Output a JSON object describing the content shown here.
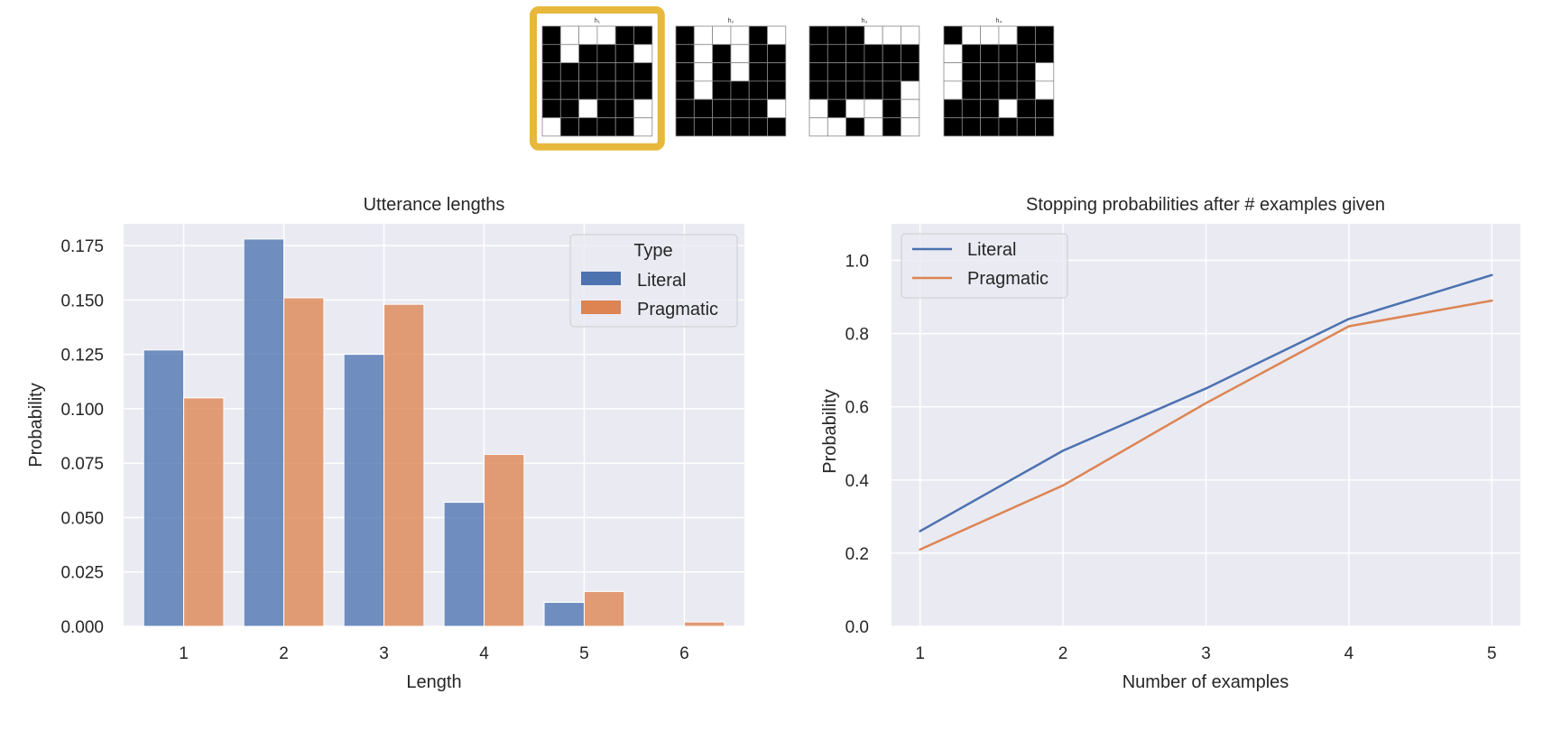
{
  "colors": {
    "literal": "#4C72B0",
    "pragmatic": "#DD8452",
    "plot_bg": "#EAEAF2",
    "grid": "#FFFFFF",
    "highlight": "#E8B83C"
  },
  "hypotheses": {
    "selected_index": 0,
    "items": [
      {
        "label": "h₁",
        "rows": [
          "011100",
          "010001",
          "000000",
          "000000",
          "001001",
          "100001"
        ]
      },
      {
        "label": "h₂",
        "rows": [
          "011101",
          "010100",
          "010100",
          "010000",
          "000001",
          "000000"
        ]
      },
      {
        "label": "h₃",
        "rows": [
          "000111",
          "000000",
          "000000",
          "000001",
          "101101",
          "110101"
        ]
      },
      {
        "label": "h₄",
        "rows": [
          "011100",
          "100000",
          "100001",
          "100001",
          "000100",
          "000000"
        ]
      }
    ]
  },
  "chart_data": [
    {
      "type": "bar",
      "title": "Utterance lengths",
      "xlabel": "Length",
      "ylabel": "Probability",
      "categories": [
        "1",
        "2",
        "3",
        "4",
        "5",
        "6"
      ],
      "ylim": [
        0,
        0.185
      ],
      "yticks": [
        0.0,
        0.025,
        0.05,
        0.075,
        0.1,
        0.125,
        0.15,
        0.175
      ],
      "ytick_labels": [
        "0.000",
        "0.025",
        "0.050",
        "0.075",
        "0.100",
        "0.125",
        "0.150",
        "0.175"
      ],
      "legend": {
        "title": "Type",
        "placement": "top-right"
      },
      "grid": true,
      "series": [
        {
          "name": "Literal",
          "values": [
            0.127,
            0.178,
            0.125,
            0.057,
            0.011,
            0.0
          ]
        },
        {
          "name": "Pragmatic",
          "values": [
            0.105,
            0.151,
            0.148,
            0.079,
            0.016,
            0.002
          ]
        }
      ]
    },
    {
      "type": "line",
      "title": "Stopping probabilities after # examples given",
      "xlabel": "Number of examples",
      "ylabel": "Probability",
      "x": [
        1,
        2,
        3,
        4,
        5
      ],
      "xlim": [
        0.8,
        5.2
      ],
      "ylim": [
        0,
        1.1
      ],
      "yticks": [
        0.0,
        0.2,
        0.4,
        0.6,
        0.8,
        1.0
      ],
      "ytick_labels": [
        "0.0",
        "0.2",
        "0.4",
        "0.6",
        "0.8",
        "1.0"
      ],
      "legend": {
        "placement": "top-left"
      },
      "grid": true,
      "series": [
        {
          "name": "Literal",
          "values": [
            0.26,
            0.48,
            0.65,
            0.84,
            0.96
          ]
        },
        {
          "name": "Pragmatic",
          "values": [
            0.21,
            0.385,
            0.61,
            0.82,
            0.89
          ]
        }
      ]
    }
  ]
}
